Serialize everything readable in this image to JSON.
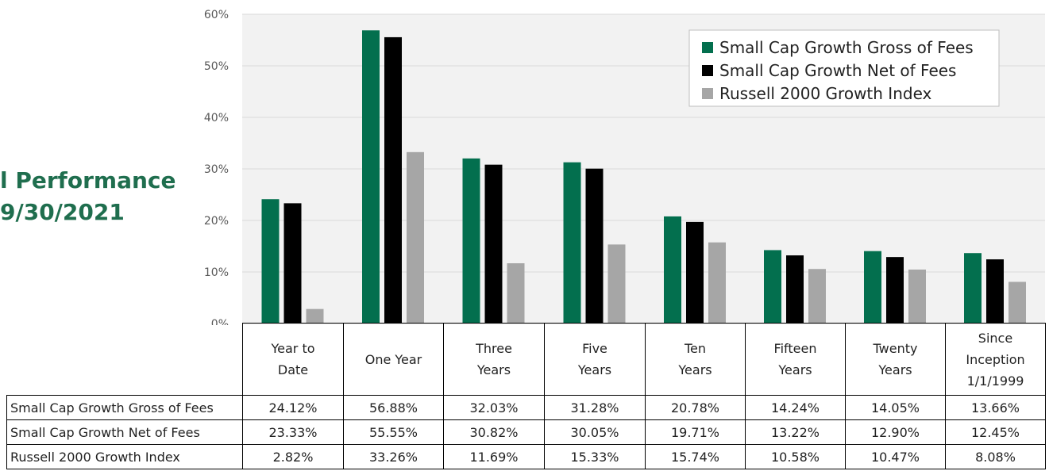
{
  "side_title": {
    "line1": "l Performance",
    "line2": "9/30/2021"
  },
  "colors": {
    "gross": "#036f4e",
    "net": "#000000",
    "index": "#a6a6a6",
    "plot_bg": "#f2f2f2",
    "grid": "#d9d9d9"
  },
  "chart_data": {
    "type": "bar",
    "categories": [
      "Year to Date",
      "One Year",
      "Three Years",
      "Five Years",
      "Ten Years",
      "Fifteen Years",
      "Twenty Years",
      "Since Inception 1/1/1999"
    ],
    "category_display": [
      "Year to\nDate",
      "One Year",
      "Three\nYears",
      "Five\nYears",
      "Ten\nYears",
      "Fifteen\nYears",
      "Twenty\nYears",
      "Since\nInception\n1/1/1999"
    ],
    "series": [
      {
        "name": "Small Cap Growth Gross of Fees",
        "values": [
          24.12,
          56.88,
          32.03,
          31.28,
          20.78,
          14.24,
          14.05,
          13.66
        ],
        "labels": [
          "24.12%",
          "56.88%",
          "32.03%",
          "31.28%",
          "20.78%",
          "14.24%",
          "14.05%",
          "13.66%"
        ]
      },
      {
        "name": "Small Cap Growth Net of Fees",
        "values": [
          23.33,
          55.55,
          30.82,
          30.05,
          19.71,
          13.22,
          12.9,
          12.45
        ],
        "labels": [
          "23.33%",
          "55.55%",
          "30.82%",
          "30.05%",
          "19.71%",
          "13.22%",
          "12.90%",
          "12.45%"
        ]
      },
      {
        "name": "Russell 2000 Growth Index",
        "values": [
          2.82,
          33.26,
          11.69,
          15.33,
          15.74,
          10.58,
          10.47,
          8.08
        ],
        "labels": [
          "2.82%",
          "33.26%",
          "11.69%",
          "15.33%",
          "15.74%",
          "10.58%",
          "10.47%",
          "8.08%"
        ]
      }
    ],
    "y_ticks": [
      0,
      10,
      20,
      30,
      40,
      50,
      60
    ],
    "y_tick_labels": [
      "0%",
      "10%",
      "20%",
      "30%",
      "40%",
      "50%",
      "60%"
    ],
    "ylim": [
      0,
      60
    ],
    "grid": true,
    "legend_position": "top-right"
  }
}
